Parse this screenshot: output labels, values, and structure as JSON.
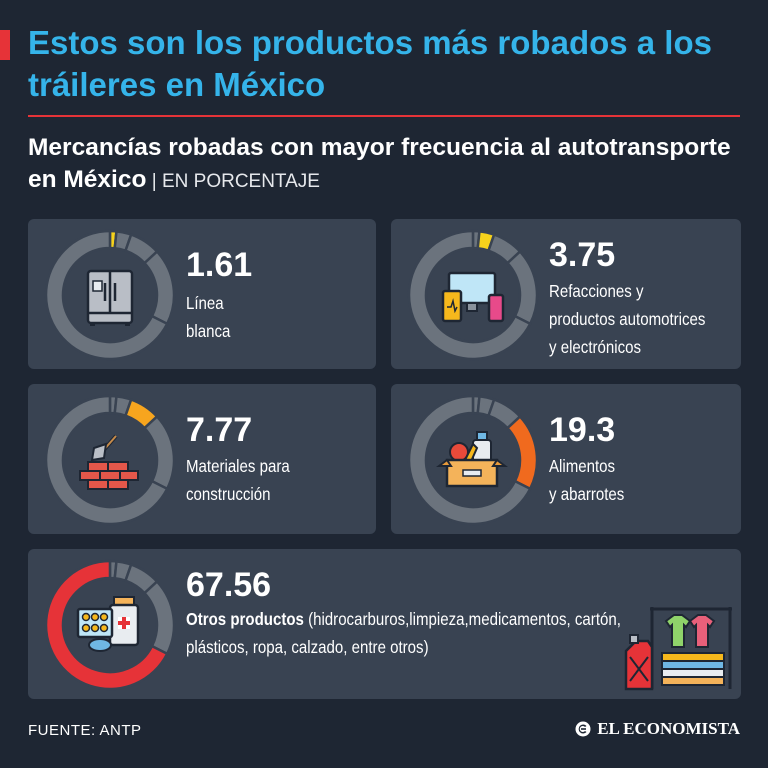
{
  "title": "Estos son los productos más robados a los tráileres en México",
  "subtitle": {
    "main": "Mercancías robadas con mayor frecuencia al autotransporte en México",
    "separator": " | ",
    "unit": "EN PORCENTAJE"
  },
  "chart_data": {
    "type": "pie",
    "unit": "EN PORCENTAJE",
    "categories": [
      "Línea blanca",
      "Refacciones y productos automotrices y electrónicos",
      "Materiales para construcción",
      "Alimentos y abarrotes",
      "Otros productos"
    ],
    "values": [
      1.61,
      3.75,
      7.77,
      19.3,
      67.56
    ]
  },
  "cards": [
    {
      "value": "1.61",
      "label": "Línea\nblanca",
      "color": "#f6d21c",
      "icon": "refrigerator-icon"
    },
    {
      "value": "3.75",
      "label": "Refacciones y\nproductos automotrices\ny electrónicos",
      "color": "#f6d21c",
      "icon": "electronics-icon"
    },
    {
      "value": "7.77",
      "label": "Materiales para\nconstrucción",
      "color": "#f7a51e",
      "icon": "bricks-icon"
    },
    {
      "value": "19.3",
      "label": "Alimentos\ny abarrotes",
      "color": "#f06a1e",
      "icon": "groceries-box-icon"
    },
    {
      "value": "67.56",
      "label_strong": "Otros productos",
      "label_rest": " (hidrocarburos,limpieza,medicamentos, cartón,",
      "label_line2": "plásticos, ropa, calzado, entre otros)",
      "color": "#e63338",
      "icon": "medicines-icon"
    }
  ],
  "colors": {
    "background": "#1e2633",
    "card": "#394352",
    "donut_track": "#6b737d",
    "title": "#35b4ea",
    "accent": "#e63338"
  },
  "footer": {
    "source": "FUENTE: ANTP",
    "brand": "EL ECONOMISTA"
  }
}
